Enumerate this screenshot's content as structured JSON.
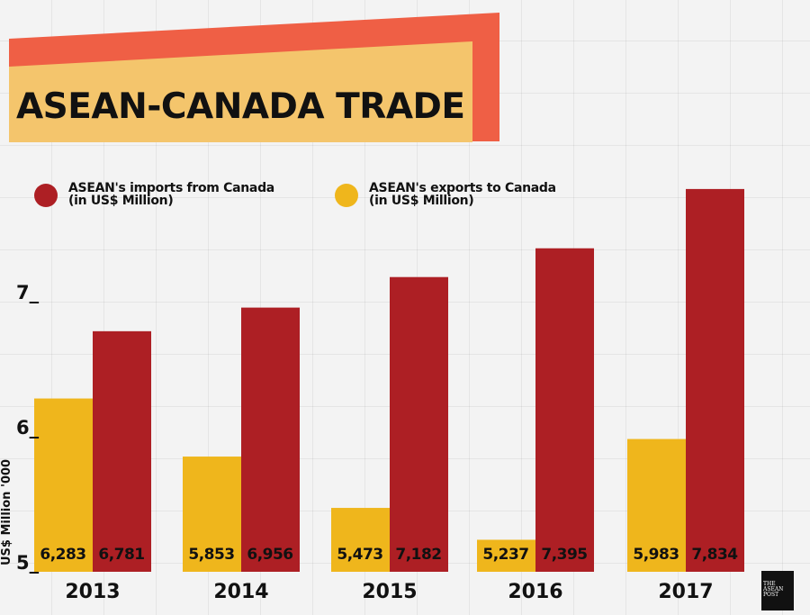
{
  "chart_data": {
    "type": "bar",
    "title": "ASEAN-CANADA TRADE",
    "ylabel": "US$ Million '000",
    "yticks": [
      "5",
      "6",
      "7"
    ],
    "ylim": [
      5000,
      7900
    ],
    "grid": true,
    "legend_placement": "top-left",
    "categories": [
      "2013",
      "2014",
      "2015",
      "2016",
      "2017"
    ],
    "series": [
      {
        "name": "ASEAN's exports to Canada (in US$ Million)",
        "color": "#efb61c",
        "values": [
          6283,
          5853,
          5473,
          5237,
          5983
        ],
        "labels": [
          "6,283",
          "5,853",
          "5,473",
          "5,237",
          "5,983"
        ]
      },
      {
        "name": "ASEAN's imports from Canada (in US$ Million)",
        "color": "#ad1f24",
        "values": [
          6781,
          6956,
          7182,
          7395,
          7834
        ],
        "labels": [
          "6,781",
          "6,956",
          "7,182",
          "7,395",
          "7,834"
        ]
      }
    ]
  },
  "legend": {
    "imports_line1": "ASEAN's imports from Canada",
    "imports_line2": "(in US$ Million)",
    "exports_line1": "ASEAN's exports to Canada",
    "exports_line2": "(in US$ Million)"
  },
  "logo": {
    "text": "THE ASEAN POST"
  },
  "colors": {
    "banner_red": "#ef5f45",
    "banner_yellow": "#f4c56c"
  }
}
